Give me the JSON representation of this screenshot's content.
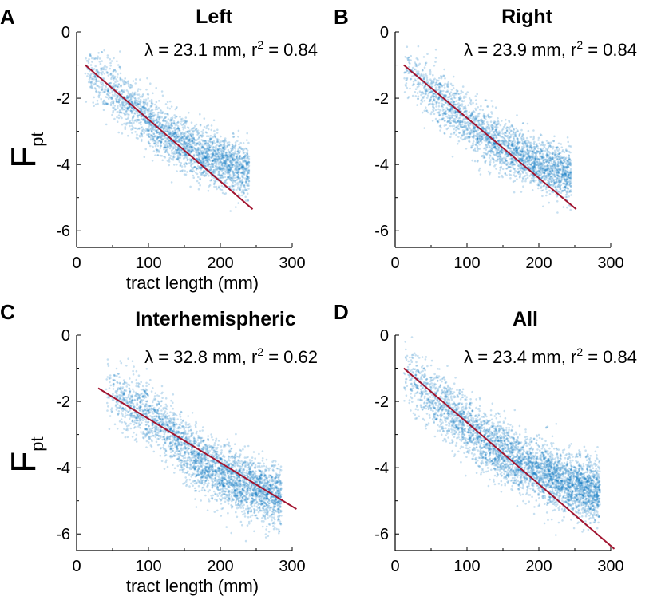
{
  "chart_data": [
    {
      "panel_label": "A",
      "type": "scatter",
      "title": "Left",
      "annotation_prefix": "λ = 23.1 mm, r",
      "annotation_sup": "2",
      "annotation_suffix": " = 0.84",
      "xlabel": "tract length (mm)",
      "ylabel": "F",
      "ylabel_sub": "pt",
      "xlim": [
        0,
        300
      ],
      "ylim": [
        -6.5,
        0
      ],
      "xticks": [
        "0",
        "100",
        "200",
        "300"
      ],
      "yticks": [
        "0",
        "-2",
        "-4",
        "-6"
      ],
      "fit_line": {
        "x": [
          12,
          245
        ],
        "y": [
          -1.0,
          -5.35
        ]
      },
      "scatter": {
        "n_points": 2600,
        "x_range": [
          12,
          240
        ],
        "center_curve": [
          [
            20,
            -1.2
          ],
          [
            60,
            -1.9
          ],
          [
            100,
            -2.7
          ],
          [
            140,
            -3.3
          ],
          [
            180,
            -3.75
          ],
          [
            220,
            -4.05
          ],
          [
            240,
            -4.1
          ]
        ],
        "spread": 0.4,
        "color": "#0072BD"
      },
      "line_color": "#A2142F"
    },
    {
      "panel_label": "B",
      "type": "scatter",
      "title": "Right",
      "annotation_prefix": "λ = 23.9 mm, r",
      "annotation_sup": "2",
      "annotation_suffix": " = 0.84",
      "xlabel": "",
      "ylabel": "",
      "ylabel_sub": "",
      "xlim": [
        0,
        300
      ],
      "ylim": [
        -6.5,
        0
      ],
      "xticks": [
        "0",
        "100",
        "200",
        "300"
      ],
      "yticks": [
        "0",
        "-2",
        "-4",
        "-6"
      ],
      "fit_line": {
        "x": [
          12,
          252
        ],
        "y": [
          -1.0,
          -5.35
        ]
      },
      "scatter": {
        "n_points": 2600,
        "x_range": [
          12,
          245
        ],
        "center_curve": [
          [
            20,
            -1.2
          ],
          [
            60,
            -1.95
          ],
          [
            100,
            -2.75
          ],
          [
            140,
            -3.35
          ],
          [
            180,
            -3.8
          ],
          [
            220,
            -4.15
          ],
          [
            245,
            -4.3
          ]
        ],
        "spread": 0.4,
        "color": "#0072BD"
      },
      "line_color": "#A2142F"
    },
    {
      "panel_label": "C",
      "type": "scatter",
      "title": "Interhemispheric",
      "annotation_prefix": "λ = 32.8 mm, r",
      "annotation_sup": "2",
      "annotation_suffix": " = 0.62",
      "xlabel": "tract length (mm)",
      "ylabel": "F",
      "ylabel_sub": "pt",
      "xlim": [
        0,
        300
      ],
      "ylim": [
        -6.5,
        0
      ],
      "xticks": [
        "0",
        "100",
        "200",
        "300"
      ],
      "yticks": [
        "0",
        "-2",
        "-4",
        "-6"
      ],
      "fit_line": {
        "x": [
          30,
          306
        ],
        "y": [
          -1.6,
          -5.25
        ]
      },
      "scatter": {
        "n_points": 3200,
        "x_range": [
          40,
          285
        ],
        "center_curve": [
          [
            40,
            -1.6
          ],
          [
            80,
            -2.1
          ],
          [
            120,
            -2.7
          ],
          [
            160,
            -3.6
          ],
          [
            200,
            -4.2
          ],
          [
            240,
            -4.6
          ],
          [
            285,
            -4.9
          ]
        ],
        "spread": 0.45,
        "color": "#0072BD"
      },
      "line_color": "#A2142F"
    },
    {
      "panel_label": "D",
      "type": "scatter",
      "title": "All",
      "annotation_prefix": "λ = 23.4 mm, r",
      "annotation_sup": "2",
      "annotation_suffix": " = 0.84",
      "xlabel": "",
      "ylabel": "",
      "ylabel_sub": "",
      "xlim": [
        0,
        300
      ],
      "ylim": [
        -6.5,
        0
      ],
      "xticks": [
        "0",
        "100",
        "200",
        "300"
      ],
      "yticks": [
        "0",
        "-2",
        "-4",
        "-6"
      ],
      "fit_line": {
        "x": [
          12,
          305
        ],
        "y": [
          -1.0,
          -6.45
        ]
      },
      "scatter": {
        "n_points": 4000,
        "x_range": [
          12,
          285
        ],
        "center_curve": [
          [
            20,
            -1.2
          ],
          [
            60,
            -2.0
          ],
          [
            100,
            -2.8
          ],
          [
            140,
            -3.4
          ],
          [
            180,
            -3.9
          ],
          [
            220,
            -4.3
          ],
          [
            260,
            -4.6
          ],
          [
            285,
            -4.8
          ]
        ],
        "spread": 0.45,
        "color": "#0072BD"
      },
      "line_color": "#A2142F"
    }
  ]
}
